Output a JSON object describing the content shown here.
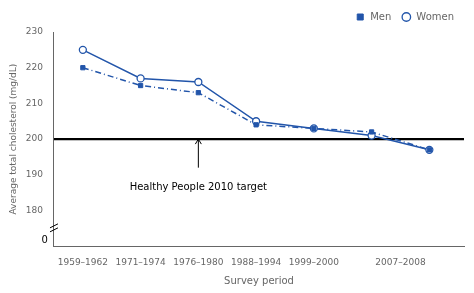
{
  "chart_data": {
    "type": "line",
    "xlabel": "Survey period",
    "ylabel": "Average total cholesterol (mg/dL)",
    "x": [
      0,
      1,
      2,
      3,
      4,
      5,
      6
    ],
    "xlim": [
      -0.5,
      6.6
    ],
    "xticks": [
      {
        "value": 0,
        "label": "1959–1962"
      },
      {
        "value": 1,
        "label": "1971–1974"
      },
      {
        "value": 2,
        "label": "1976–1980"
      },
      {
        "value": 3,
        "label": "1988–1994"
      },
      {
        "value": 4,
        "label": "1999–2000"
      },
      {
        "value": 5.5,
        "label": "2007–2008"
      }
    ],
    "ylim": [
      170,
      230
    ],
    "yticks": [
      180,
      190,
      200,
      210,
      220,
      230
    ],
    "grid": false,
    "legend": "upper right",
    "series": [
      {
        "name": "Men",
        "color": "#2255AA",
        "line_style": "dashdot",
        "marker": "square",
        "values": [
          220,
          215,
          213,
          204,
          203,
          202,
          197
        ]
      },
      {
        "name": "Women",
        "color": "#2255AA",
        "line_style": "solid",
        "marker": "open_circle",
        "values": [
          225,
          217,
          216,
          205,
          203,
          201,
          197
        ]
      }
    ],
    "reference_lines": [
      {
        "y": 200,
        "color": "#000000"
      }
    ],
    "annotations": [
      {
        "text": "Healthy People 2010 target",
        "x": 2.0,
        "y": 188,
        "arrow": {
          "x": 2.0,
          "y_start": 192,
          "y_end": 200
        }
      },
      {
        "text": "0",
        "x": -0.53,
        "y": 171.5
      }
    ]
  }
}
